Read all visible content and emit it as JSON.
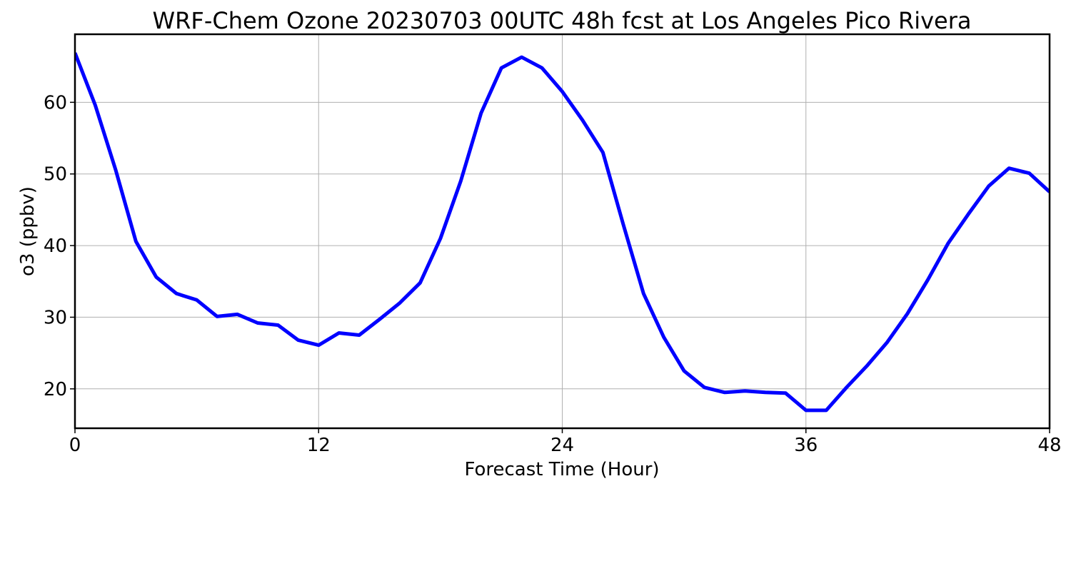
{
  "chart_data": {
    "type": "line",
    "title": "WRF-Chem Ozone  20230703 00UTC 48h fcst at Los Angeles Pico Rivera",
    "xlabel": "Forecast Time (Hour)",
    "ylabel": "o3  (ppbv)",
    "xlim": [
      0,
      48
    ],
    "ylim": [
      14.5,
      69.5
    ],
    "xticks": [
      0,
      12,
      24,
      36,
      48
    ],
    "yticks": [
      20,
      30,
      40,
      50,
      60
    ],
    "grid": true,
    "series": [
      {
        "color": "#0000ff",
        "x": [
          0,
          1,
          2,
          3,
          4,
          5,
          6,
          7,
          8,
          9,
          10,
          11,
          12,
          13,
          14,
          15,
          16,
          17,
          18,
          19,
          20,
          21,
          22,
          23,
          24,
          25,
          26,
          27,
          28,
          29,
          30,
          31,
          32,
          33,
          34,
          35,
          36,
          37,
          38,
          39,
          40,
          41,
          42,
          43,
          44,
          45,
          46,
          47,
          48
        ],
        "values": [
          66.9,
          59.6,
          50.6,
          40.6,
          35.6,
          33.3,
          32.4,
          30.1,
          30.4,
          29.2,
          28.9,
          26.8,
          26.1,
          27.8,
          27.5,
          29.7,
          32.0,
          34.8,
          41.0,
          49.0,
          58.5,
          64.8,
          66.3,
          64.8,
          61.5,
          57.5,
          53.0,
          43.0,
          33.3,
          27.2,
          22.5,
          20.2,
          19.5,
          19.7,
          19.5,
          19.4,
          17.0,
          17.0,
          20.2,
          23.2,
          26.5,
          30.5,
          35.2,
          40.3,
          44.4,
          48.3,
          50.8,
          50.1,
          47.5
        ]
      }
    ]
  }
}
